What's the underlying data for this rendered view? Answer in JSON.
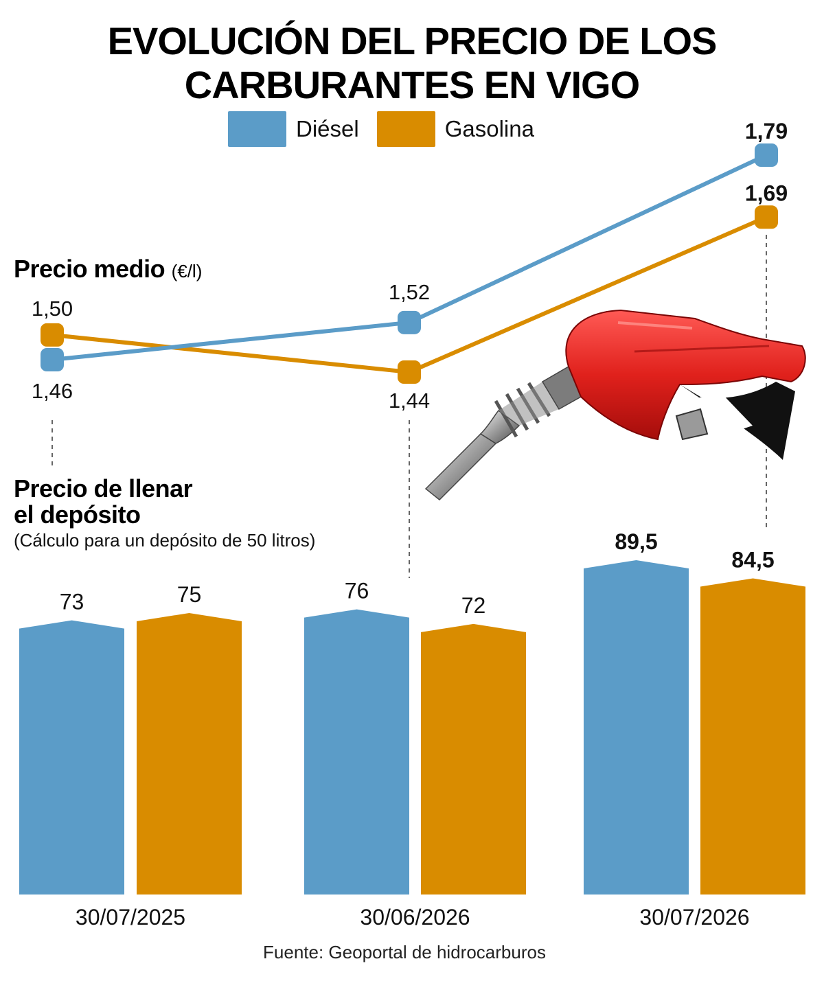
{
  "title_line1": "EVOLUCIÓN DEL PRECIO DE LOS",
  "title_line2": "CARBURANTES EN VIGO",
  "legend": [
    {
      "name": "Diésel",
      "color": "#5b9cc8"
    },
    {
      "name": "Gasolina",
      "color": "#d98c00"
    }
  ],
  "price_section": {
    "title": "Precio medio",
    "unit": "(€/l)"
  },
  "tank_section": {
    "title_line1": "Precio de llenar",
    "title_line2": "el depósito",
    "subtitle": "(Cálculo para un depósito de 50 litros)"
  },
  "source": "Fuente: Geoportal de hidrocarburos",
  "chart_data": [
    {
      "type": "line",
      "title": "Precio medio",
      "unit": "(€/l)",
      "x": [
        "30/07/2025",
        "30/06/2026",
        "30/07/2026"
      ],
      "series": [
        {
          "name": "Diésel",
          "color": "#5b9cc8",
          "values": [
            1.46,
            1.52,
            1.79
          ],
          "labels": [
            "1,46",
            "1,52",
            "1,79"
          ]
        },
        {
          "name": "Gasolina",
          "color": "#d98c00",
          "values": [
            1.5,
            1.44,
            1.69
          ],
          "labels": [
            "1,50",
            "1,44",
            "1,69"
          ]
        }
      ]
    },
    {
      "type": "bar",
      "title": "Precio de llenar el depósito",
      "subtitle": "(Cálculo para un depósito de 50 litros)",
      "categories": [
        "30/07/2025",
        "30/06/2026",
        "30/07/2026"
      ],
      "series": [
        {
          "name": "Diésel",
          "color": "#5b9cc8",
          "values": [
            73,
            76,
            89.5
          ],
          "labels": [
            "73",
            "76",
            "89,5"
          ]
        },
        {
          "name": "Gasolina",
          "color": "#d98c00",
          "values": [
            75,
            72,
            84.5
          ],
          "labels": [
            "75",
            "72",
            "84,5"
          ]
        }
      ]
    }
  ]
}
